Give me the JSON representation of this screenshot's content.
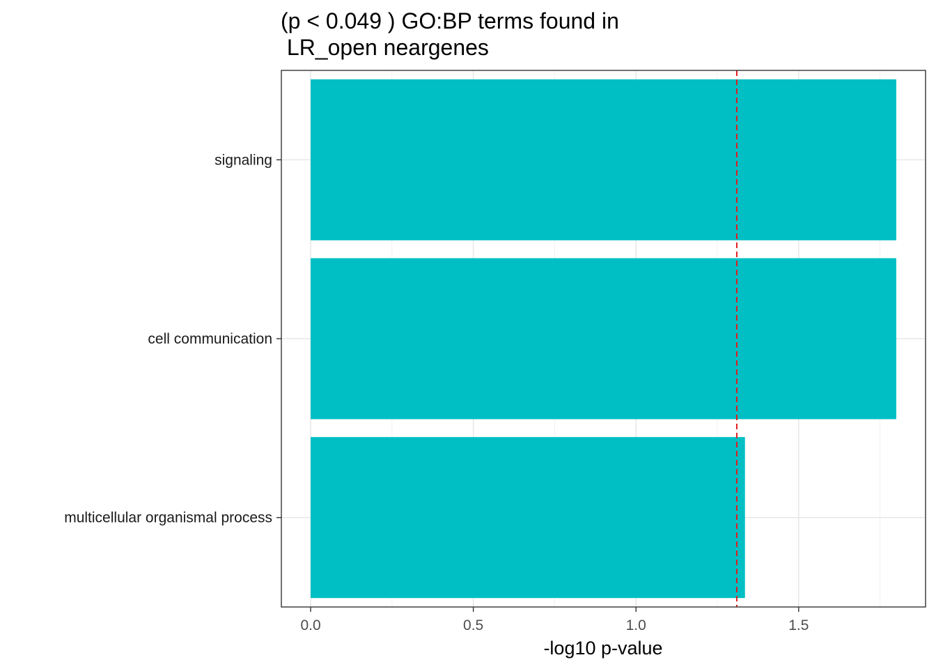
{
  "chart_data": {
    "type": "bar",
    "orientation": "horizontal",
    "title_lines": [
      "(p < 0.049 ) GO:BP terms found in",
      " LR_open neargenes"
    ],
    "xlabel": "-log10 p-value",
    "ylabel": "",
    "categories": [
      "signaling",
      "cell communication",
      "multicellular organismal process"
    ],
    "values": [
      1.8,
      1.8,
      1.335
    ],
    "xlim": [
      -0.09,
      1.89
    ],
    "x_ticks": [
      0.0,
      0.5,
      1.0,
      1.5
    ],
    "x_tick_labels": [
      "0.0",
      "0.5",
      "1.0",
      "1.5"
    ],
    "threshold_line": 1.3098,
    "bar_color": "#00BFC4",
    "threshold_color": "#E41A1C",
    "grid": true,
    "legend": "none"
  }
}
